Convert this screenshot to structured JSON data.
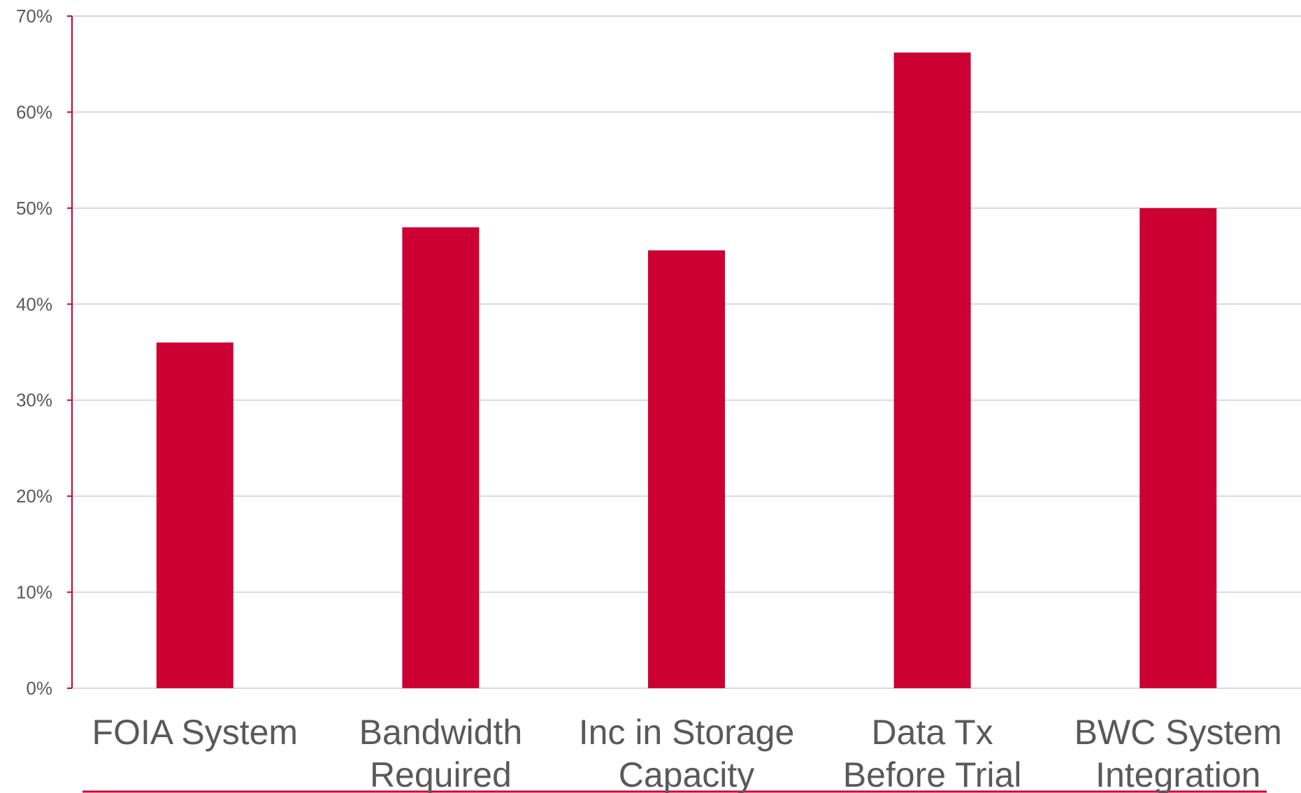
{
  "chart_data": {
    "type": "bar",
    "categories": [
      [
        "FOIA System"
      ],
      [
        "Bandwidth",
        "Required"
      ],
      [
        "Inc in Storage",
        "Capacity"
      ],
      [
        "Data Tx",
        "Before Trial"
      ],
      [
        "BWC System",
        "Integration"
      ]
    ],
    "values": [
      36,
      48,
      45.6,
      66.2,
      50
    ],
    "ylim": [
      0,
      70
    ],
    "yticks": [
      "0%",
      "10%",
      "20%",
      "30%",
      "40%",
      "50%",
      "60%",
      "70%"
    ],
    "ytick_values": [
      0,
      10,
      20,
      30,
      40,
      50,
      60,
      70
    ],
    "grid": true,
    "bar_color": "#cc0033",
    "axis_color": "#cc0033",
    "grid_color": "#d9d9d9",
    "text_color": "#595959"
  }
}
